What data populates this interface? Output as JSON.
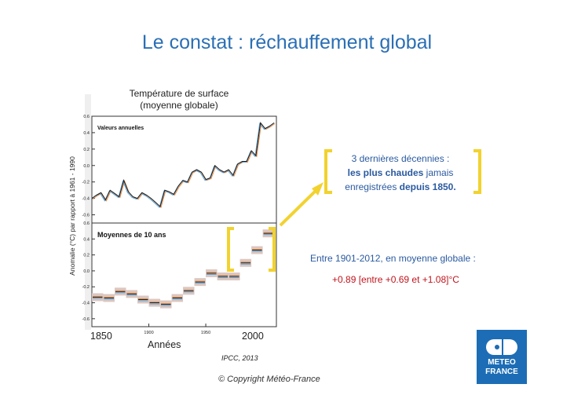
{
  "slide": {
    "title": "Le constat : réchauffement global",
    "chart_title_line1": "Température de surface",
    "chart_title_line2": "(moyenne globale)",
    "source": "IPCC, 2013",
    "copyright": "© Copyright Météo-France"
  },
  "callout": {
    "line1": "3 dernières décennies :",
    "bold1": "les plus chaudes",
    "text2": " jamais",
    "text3": "enregistrées ",
    "bold2": "depuis 1850."
  },
  "stat": {
    "line": "Entre 1901-2012, en moyenne globale :",
    "value": "+0.89 [entre +0.69 et +1.08]°C"
  },
  "logo": {
    "line1": "METEO",
    "line2": "FRANCE"
  },
  "colors": {
    "title_blue": "#2a6fb5",
    "callout_blue": "#2a5aa0",
    "value_red": "#c0141c",
    "bracket_yellow": "#f2d22e",
    "logo_blue": "#1c6db5",
    "decade_box": "#dcc7c0"
  },
  "chart_data": [
    {
      "type": "line",
      "title": "Valeurs annuelles",
      "ylabel": "Anomalie (°C) par rapport à 1961 - 1990",
      "ylim": [
        -0.7,
        0.6
      ],
      "yticks": [
        "0.6",
        "0.4",
        "0.2",
        "0.0",
        "-0.2",
        "-0.4",
        "-0.6"
      ],
      "xlim": [
        1850,
        2012
      ],
      "series": [
        {
          "x": [
            1850,
            1854,
            1858,
            1862,
            1866,
            1870,
            1874,
            1878,
            1882,
            1886,
            1890,
            1894,
            1898,
            1902,
            1906,
            1910,
            1914,
            1918,
            1922,
            1926,
            1930,
            1934,
            1938,
            1942,
            1946,
            1950,
            1954,
            1958,
            1962,
            1966,
            1970,
            1974,
            1978,
            1982,
            1986,
            1990,
            1994,
            1998,
            2002,
            2006,
            2010
          ],
          "values": [
            -0.4,
            -0.36,
            -0.33,
            -0.42,
            -0.3,
            -0.34,
            -0.38,
            -0.18,
            -0.32,
            -0.38,
            -0.4,
            -0.33,
            -0.36,
            -0.4,
            -0.45,
            -0.5,
            -0.3,
            -0.32,
            -0.35,
            -0.25,
            -0.18,
            -0.2,
            -0.08,
            -0.05,
            -0.08,
            -0.17,
            -0.15,
            0.0,
            -0.05,
            -0.08,
            -0.05,
            -0.12,
            0.02,
            0.05,
            0.05,
            0.18,
            0.12,
            0.52,
            0.45,
            0.48,
            0.52
          ]
        }
      ]
    },
    {
      "type": "bar",
      "title": "Moyennes de 10 ans",
      "xlabel": "Années",
      "ylabel": "Anomalie (°C) par rapport à 1961 - 1990",
      "ylim": [
        -0.7,
        0.6
      ],
      "yticks": [
        "0.6",
        "0.4",
        "0.2",
        "0.0",
        "-0.2",
        "-0.4",
        "-0.6"
      ],
      "xticks": [
        "1850",
        "1900",
        "1950",
        "2000"
      ],
      "categories": [
        "1850",
        "1860",
        "1870",
        "1880",
        "1890",
        "1900",
        "1910",
        "1920",
        "1930",
        "1940",
        "1950",
        "1960",
        "1970",
        "1980",
        "1990",
        "2000"
      ],
      "values": [
        -0.33,
        -0.34,
        -0.26,
        -0.29,
        -0.36,
        -0.4,
        -0.42,
        -0.34,
        -0.25,
        -0.14,
        -0.03,
        -0.07,
        -0.07,
        0.1,
        0.26,
        0.47
      ]
    }
  ]
}
